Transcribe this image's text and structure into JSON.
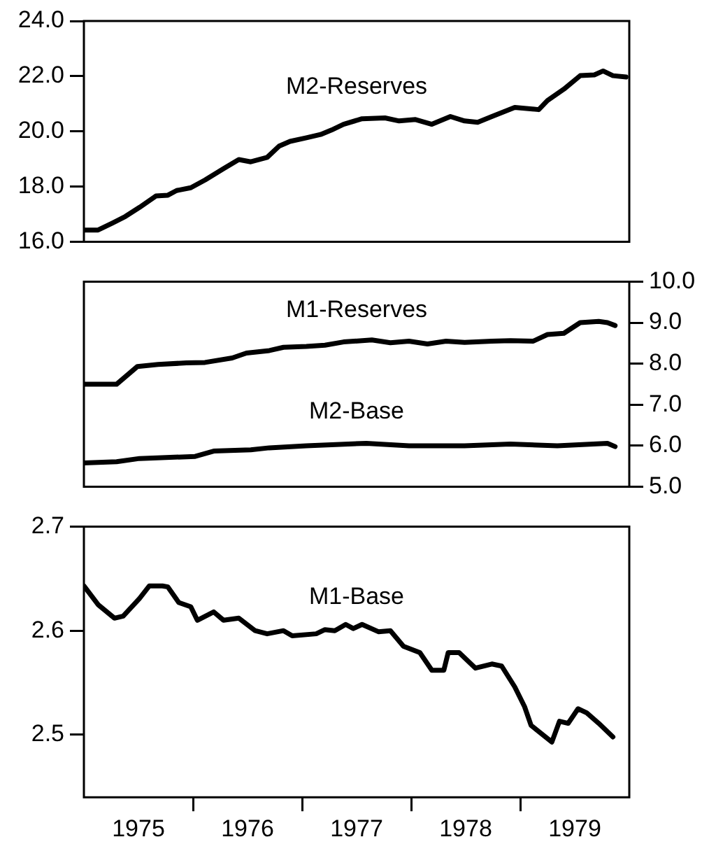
{
  "chart_data": [
    {
      "type": "line",
      "xlim": [
        1975,
        1980
      ],
      "ylim": [
        16,
        24
      ],
      "yticks": [
        {
          "value": 16,
          "label": "16.0"
        },
        {
          "value": 18,
          "label": "18.0"
        },
        {
          "value": 20,
          "label": "20.0"
        },
        {
          "value": 22,
          "label": "22.0"
        },
        {
          "value": 24,
          "label": "24.0"
        }
      ],
      "tick_labels": "y",
      "legend": false,
      "grid": false,
      "marker": "none",
      "line_style": "solid",
      "series": [
        {
          "name": "M2-Reserves",
          "color": "#000000",
          "x": [
            1975.0,
            1975.13,
            1975.26,
            1975.38,
            1975.51,
            1975.66,
            1975.77,
            1975.85,
            1975.98,
            1976.11,
            1976.28,
            1976.42,
            1976.53,
            1976.68,
            1976.79,
            1976.89,
            1977.04,
            1977.17,
            1977.27,
            1977.38,
            1977.55,
            1977.76,
            1977.89,
            1978.04,
            1978.19,
            1978.36,
            1978.49,
            1978.61,
            1978.74,
            1978.95,
            1979.17,
            1979.25,
            1979.4,
            1979.55,
            1979.68,
            1979.76,
            1979.85,
            1979.97
          ],
          "values": [
            16.43,
            16.43,
            16.68,
            16.92,
            17.25,
            17.66,
            17.69,
            17.86,
            17.96,
            18.24,
            18.65,
            18.98,
            18.9,
            19.06,
            19.47,
            19.64,
            19.77,
            19.89,
            20.05,
            20.26,
            20.46,
            20.49,
            20.38,
            20.43,
            20.26,
            20.54,
            20.38,
            20.33,
            20.54,
            20.87,
            20.79,
            21.12,
            21.53,
            22.02,
            22.05,
            22.19,
            22.02,
            21.97
          ]
        }
      ]
    },
    {
      "type": "line",
      "xlim": [
        1975,
        1980
      ],
      "y2lim": [
        5,
        10
      ],
      "y2ticks": [
        {
          "value": 5,
          "label": "5.0"
        },
        {
          "value": 6,
          "label": "6.0"
        },
        {
          "value": 7,
          "label": "7.0"
        },
        {
          "value": 8,
          "label": "8.0"
        },
        {
          "value": 9,
          "label": "9.0"
        },
        {
          "value": 10,
          "label": "10.0"
        }
      ],
      "tick_labels": "y2",
      "legend": false,
      "grid": false,
      "marker": "none",
      "line_style": "solid",
      "series": [
        {
          "name": "M1-Reserves",
          "color": "#000000",
          "axis": "y2",
          "x": [
            1975.0,
            1975.3,
            1975.49,
            1975.68,
            1975.94,
            1976.11,
            1976.36,
            1976.49,
            1976.7,
            1976.83,
            1977.04,
            1977.21,
            1977.38,
            1977.64,
            1977.81,
            1977.98,
            1978.15,
            1978.32,
            1978.49,
            1978.74,
            1978.91,
            1979.12,
            1979.25,
            1979.4,
            1979.55,
            1979.72,
            1979.8,
            1979.87
          ],
          "values": [
            7.5,
            7.5,
            7.93,
            7.98,
            8.02,
            8.03,
            8.14,
            8.26,
            8.32,
            8.4,
            8.42,
            8.45,
            8.53,
            8.58,
            8.51,
            8.55,
            8.48,
            8.55,
            8.52,
            8.55,
            8.56,
            8.55,
            8.71,
            8.74,
            9.0,
            9.03,
            9.0,
            8.93
          ]
        },
        {
          "name": "M2-Base",
          "color": "#000000",
          "axis": "y2",
          "x": [
            1975.0,
            1975.3,
            1975.51,
            1976.02,
            1976.19,
            1976.53,
            1976.7,
            1977.04,
            1977.59,
            1977.98,
            1978.49,
            1978.91,
            1979.34,
            1979.8,
            1979.87
          ],
          "values": [
            5.58,
            5.61,
            5.69,
            5.74,
            5.87,
            5.9,
            5.95,
            6.0,
            6.06,
            6.0,
            6.0,
            6.04,
            6.0,
            6.06,
            5.98
          ]
        }
      ]
    },
    {
      "type": "line",
      "xlim": [
        1975,
        1980
      ],
      "ylim": [
        2.44,
        2.7
      ],
      "yticks": [
        2.5,
        2.6,
        2.7
      ],
      "xticks": [
        {
          "value": 1975.5,
          "label": "1975"
        },
        {
          "value": 1976,
          "label": null
        },
        {
          "value": 1976.5,
          "label": "1976"
        },
        {
          "value": 1977,
          "label": null
        },
        {
          "value": 1977.5,
          "label": "1977"
        },
        {
          "value": 1978,
          "label": null
        },
        {
          "value": 1978.5,
          "label": "1978"
        },
        {
          "value": 1979,
          "label": null
        },
        {
          "value": 1979.5,
          "label": "1979"
        }
      ],
      "legend": false,
      "grid": false,
      "marker": "none",
      "line_style": "solid",
      "series": [
        {
          "name": "M1-Base",
          "color": "#000000",
          "x": [
            1975.0,
            1975.13,
            1975.28,
            1975.36,
            1975.51,
            1975.6,
            1975.72,
            1975.77,
            1975.87,
            1975.98,
            1976.04,
            1976.19,
            1976.28,
            1976.42,
            1976.57,
            1976.68,
            1976.83,
            1976.91,
            1977.13,
            1977.21,
            1977.3,
            1977.4,
            1977.47,
            1977.55,
            1977.7,
            1977.81,
            1977.93,
            1978.08,
            1978.19,
            1978.3,
            1978.34,
            1978.44,
            1978.59,
            1978.74,
            1978.83,
            1978.95,
            1979.04,
            1979.1,
            1979.29,
            1979.36,
            1979.44,
            1979.53,
            1979.61,
            1979.72,
            1979.85
          ],
          "values": [
            2.643,
            2.625,
            2.612,
            2.614,
            2.631,
            2.643,
            2.643,
            2.642,
            2.627,
            2.623,
            2.61,
            2.618,
            2.61,
            2.612,
            2.6,
            2.597,
            2.6,
            2.595,
            2.597,
            2.601,
            2.6,
            2.606,
            2.602,
            2.606,
            2.599,
            2.6,
            2.585,
            2.579,
            2.562,
            2.562,
            2.579,
            2.579,
            2.564,
            2.568,
            2.566,
            2.546,
            2.527,
            2.509,
            2.493,
            2.513,
            2.511,
            2.525,
            2.521,
            2.511,
            2.498
          ]
        }
      ]
    }
  ]
}
